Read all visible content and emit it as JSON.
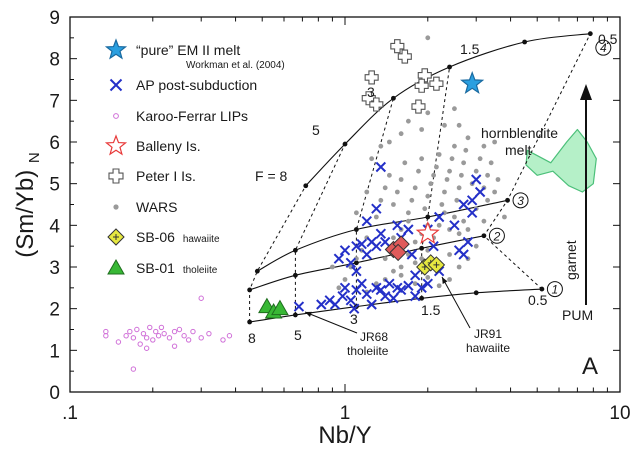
{
  "chart_data": {
    "type": "scatter",
    "panel_label": "A",
    "xlabel": "Nb/Y",
    "ylabel_main": "(Sm/Yb)",
    "ylabel_sub": "N",
    "x_scale": "log",
    "xlim": [
      0.1,
      10
    ],
    "ylim": [
      0,
      9
    ],
    "x_ticks": [
      {
        "value": 0.1,
        "label": ".1"
      },
      {
        "value": 1,
        "label": "1"
      },
      {
        "value": 10,
        "label": "10"
      }
    ],
    "y_ticks": [
      0,
      1,
      2,
      3,
      4,
      5,
      6,
      7,
      8,
      9
    ],
    "legend": {
      "position": "top-left",
      "entries": [
        {
          "key": "em2",
          "label": "“pure” EM II melt",
          "sublabel": "Workman et al. (2004)"
        },
        {
          "key": "ap",
          "label": "AP post-subduction"
        },
        {
          "key": "karoo",
          "label": "Karoo-Ferrar LIPs"
        },
        {
          "key": "balleny",
          "label": "Balleny Is."
        },
        {
          "key": "peter",
          "label": "Peter I Is."
        },
        {
          "key": "wars",
          "label": "WARS"
        },
        {
          "key": "sb06",
          "label": "SB-06",
          "label_suffix": "hawaiite"
        },
        {
          "key": "sb01",
          "label": "SB-01",
          "label_suffix": "tholeiite"
        }
      ]
    },
    "colors": {
      "em2": "#2a9fe0",
      "ap": "#2430c8",
      "karoo": "#d070d8",
      "balleny": "#e83a3a",
      "peter": "#555555",
      "wars": "#9a9a9a",
      "sb06": "#e6e840",
      "sb01": "#38b835",
      "hornblendite_fill": "#b5f0c8",
      "hornblendite_stroke": "#4cc07a",
      "curve": "#111111",
      "jr68_fill": "#e05a5a"
    },
    "melting_curves": [
      {
        "label": "1",
        "points": [
          [
            0.45,
            1.68
          ],
          [
            0.66,
            1.85
          ],
          [
            1.1,
            2.05
          ],
          [
            1.9,
            2.25
          ],
          [
            3.0,
            2.38
          ],
          [
            5.2,
            2.47
          ]
        ]
      },
      {
        "label": "2",
        "points": [
          [
            0.45,
            2.45
          ],
          [
            0.66,
            2.8
          ],
          [
            1.1,
            3.1
          ],
          [
            1.9,
            3.45
          ],
          [
            3.2,
            3.75
          ]
        ]
      },
      {
        "label": "3",
        "points": [
          [
            0.48,
            2.9
          ],
          [
            0.66,
            3.4
          ],
          [
            1.1,
            3.9
          ],
          [
            2.0,
            4.2
          ],
          [
            3.9,
            4.6
          ]
        ]
      },
      {
        "label": "4",
        "points": [
          [
            0.72,
            4.95
          ],
          [
            1.0,
            5.95
          ],
          [
            1.5,
            7.05
          ],
          [
            2.4,
            7.8
          ],
          [
            4.5,
            8.4
          ],
          [
            7.8,
            8.6
          ]
        ]
      }
    ],
    "melt_fraction_lines": [
      {
        "label": "8",
        "points": [
          [
            0.45,
            1.68
          ],
          [
            0.45,
            2.45
          ],
          [
            0.48,
            2.9
          ],
          [
            0.72,
            4.95
          ]
        ]
      },
      {
        "label": "5",
        "points": [
          [
            0.66,
            1.85
          ],
          [
            0.66,
            2.8
          ],
          [
            0.66,
            3.4
          ],
          [
            1.0,
            5.95
          ]
        ]
      },
      {
        "label": "3",
        "points": [
          [
            1.1,
            2.05
          ],
          [
            1.1,
            3.1
          ],
          [
            1.1,
            3.9
          ],
          [
            1.5,
            7.05
          ]
        ]
      },
      {
        "label": "1.5",
        "points": [
          [
            1.9,
            2.25
          ],
          [
            1.9,
            3.45
          ],
          [
            2.0,
            4.2
          ],
          [
            2.4,
            7.8
          ]
        ]
      },
      {
        "label": "0.5",
        "points": [
          [
            5.2,
            2.47
          ],
          [
            3.2,
            3.75
          ],
          [
            3.9,
            4.6
          ],
          [
            7.8,
            8.6
          ]
        ]
      }
    ],
    "curve_labels": {
      "f8": "F = 8",
      "f5": "5",
      "f3": "3",
      "f15": "1.5",
      "f05": "0.5",
      "bot8": "8",
      "bot5": "5",
      "bot3": "3",
      "bot15": "1.5",
      "bot05": "0.5"
    },
    "annotations": {
      "hornblendite": [
        "hornblendite",
        "melt"
      ],
      "garnet": "garnet",
      "pum": "PUM",
      "jr68": [
        "JR68",
        "tholeiite"
      ],
      "jr91": [
        "JR91",
        "hawaiite"
      ]
    },
    "series": {
      "em2": [
        [
          2.9,
          7.4
        ]
      ],
      "peter": [
        [
          1.25,
          7.55
        ],
        [
          1.22,
          7.05
        ],
        [
          1.3,
          6.9
        ],
        [
          1.55,
          8.3
        ],
        [
          1.65,
          8.05
        ],
        [
          1.95,
          7.6
        ],
        [
          1.9,
          7.35
        ],
        [
          2.15,
          7.4
        ],
        [
          1.85,
          6.85
        ]
      ],
      "balleny": [
        [
          2.0,
          3.8
        ]
      ],
      "sb06": [
        [
          1.95,
          3.0
        ],
        [
          2.05,
          3.1
        ],
        [
          2.15,
          3.05
        ]
      ],
      "sb01": [
        [
          0.52,
          2.05
        ],
        [
          0.55,
          1.92
        ],
        [
          0.58,
          2.0
        ]
      ],
      "jr68_diamonds": [
        [
          1.5,
          3.42
        ],
        [
          1.6,
          3.55
        ],
        [
          1.56,
          3.35
        ]
      ],
      "ap": [
        [
          0.68,
          2.05
        ],
        [
          0.82,
          2.1
        ],
        [
          0.88,
          2.2
        ],
        [
          0.92,
          2.1
        ],
        [
          0.98,
          2.3
        ],
        [
          1.0,
          2.5
        ],
        [
          1.05,
          2.2
        ],
        [
          1.08,
          2.0
        ],
        [
          1.1,
          2.45
        ],
        [
          1.15,
          2.6
        ],
        [
          1.2,
          2.35
        ],
        [
          1.25,
          2.1
        ],
        [
          1.3,
          2.5
        ],
        [
          1.35,
          2.45
        ],
        [
          1.4,
          2.3
        ],
        [
          1.45,
          2.6
        ],
        [
          1.5,
          2.25
        ],
        [
          1.55,
          2.5
        ],
        [
          1.6,
          2.45
        ],
        [
          1.7,
          2.55
        ],
        [
          1.8,
          2.3
        ],
        [
          1.9,
          2.5
        ],
        [
          0.95,
          3.2
        ],
        [
          1.0,
          3.4
        ],
        [
          1.05,
          3.1
        ],
        [
          1.1,
          3.5
        ],
        [
          1.15,
          3.55
        ],
        [
          1.2,
          3.3
        ],
        [
          1.25,
          3.6
        ],
        [
          1.3,
          3.5
        ],
        [
          1.35,
          3.8
        ],
        [
          1.4,
          3.6
        ],
        [
          1.2,
          4.1
        ],
        [
          1.3,
          4.4
        ],
        [
          1.35,
          5.4
        ],
        [
          1.55,
          4.0
        ],
        [
          1.6,
          3.7
        ],
        [
          1.7,
          3.9
        ],
        [
          1.75,
          3.3
        ],
        [
          1.8,
          2.8
        ],
        [
          2.0,
          3.9
        ],
        [
          2.1,
          3.5
        ],
        [
          2.2,
          4.2
        ],
        [
          2.5,
          4.0
        ],
        [
          2.6,
          3.4
        ],
        [
          2.7,
          3.3
        ],
        [
          2.8,
          3.6
        ],
        [
          2.9,
          4.3
        ],
        [
          2.9,
          4.6
        ],
        [
          2.7,
          4.5
        ],
        [
          3.0,
          5.1
        ],
        [
          3.1,
          4.8
        ],
        [
          2.2,
          2.9
        ],
        [
          2.0,
          2.6
        ],
        [
          1.1,
          2.9
        ]
      ],
      "wars": [
        [
          1.3,
          4.2
        ],
        [
          1.35,
          4.6
        ],
        [
          1.4,
          4.9
        ],
        [
          1.45,
          5.2
        ],
        [
          1.5,
          4.5
        ],
        [
          1.55,
          4.8
        ],
        [
          1.6,
          5.1
        ],
        [
          1.65,
          5.5
        ],
        [
          1.7,
          4.3
        ],
        [
          1.75,
          4.6
        ],
        [
          1.8,
          4.9
        ],
        [
          1.85,
          5.3
        ],
        [
          1.9,
          5.6
        ],
        [
          1.95,
          4.4
        ],
        [
          2.0,
          4.7
        ],
        [
          2.05,
          5.0
        ],
        [
          2.1,
          5.2
        ],
        [
          2.15,
          5.4
        ],
        [
          2.2,
          5.7
        ],
        [
          2.25,
          4.5
        ],
        [
          2.3,
          4.8
        ],
        [
          2.35,
          5.1
        ],
        [
          2.4,
          5.3
        ],
        [
          2.45,
          5.6
        ],
        [
          2.5,
          5.9
        ],
        [
          2.55,
          4.6
        ],
        [
          2.6,
          4.9
        ],
        [
          2.65,
          5.2
        ],
        [
          2.7,
          5.5
        ],
        [
          2.75,
          5.8
        ],
        [
          2.8,
          6.1
        ],
        [
          2.9,
          5.0
        ],
        [
          3.0,
          5.3
        ],
        [
          3.1,
          5.6
        ],
        [
          3.2,
          4.9
        ],
        [
          3.3,
          5.2
        ],
        [
          3.4,
          5.5
        ],
        [
          3.5,
          4.8
        ],
        [
          1.5,
          3.7
        ],
        [
          1.6,
          3.9
        ],
        [
          1.7,
          4.1
        ],
        [
          1.8,
          3.6
        ],
        [
          1.9,
          3.8
        ],
        [
          2.0,
          4.0
        ],
        [
          2.1,
          3.7
        ],
        [
          2.2,
          4.0
        ],
        [
          2.3,
          4.3
        ],
        [
          2.4,
          3.9
        ],
        [
          2.5,
          4.2
        ],
        [
          2.6,
          3.8
        ],
        [
          2.7,
          4.1
        ],
        [
          2.8,
          3.9
        ],
        [
          3.0,
          4.4
        ],
        [
          3.2,
          4.1
        ],
        [
          1.4,
          3.2
        ],
        [
          1.5,
          2.9
        ],
        [
          1.6,
          3.0
        ],
        [
          1.7,
          3.3
        ],
        [
          1.8,
          3.1
        ],
        [
          1.9,
          3.2
        ],
        [
          2.0,
          3.4
        ],
        [
          2.2,
          3.1
        ],
        [
          2.4,
          3.3
        ],
        [
          2.6,
          3.0
        ],
        [
          2.8,
          3.2
        ],
        [
          3.0,
          3.5
        ],
        [
          1.2,
          2.4
        ],
        [
          1.3,
          2.6
        ],
        [
          1.4,
          2.7
        ],
        [
          1.6,
          2.8
        ],
        [
          1.8,
          2.6
        ],
        [
          2.0,
          2.75
        ],
        [
          2.2,
          2.55
        ],
        [
          2.4,
          2.7
        ],
        [
          0.95,
          2.5
        ],
        [
          1.0,
          2.7
        ],
        [
          1.05,
          3.0
        ],
        [
          1.1,
          3.2
        ],
        [
          0.9,
          3.0
        ],
        [
          1.15,
          3.4
        ],
        [
          1.2,
          3.7
        ],
        [
          1.45,
          6.0
        ],
        [
          1.6,
          6.2
        ],
        [
          1.7,
          6.5
        ],
        [
          1.9,
          6.3
        ],
        [
          2.0,
          6.7
        ],
        [
          2.3,
          6.4
        ],
        [
          2.5,
          6.8
        ],
        [
          1.25,
          5.6
        ],
        [
          1.35,
          5.9
        ],
        [
          2.6,
          6.4
        ],
        [
          3.2,
          5.9
        ],
        [
          3.5,
          6.0
        ],
        [
          2.0,
          8.5
        ],
        [
          1.2,
          4.8
        ],
        [
          1.1,
          4.3
        ],
        [
          3.6,
          5.1
        ],
        [
          3.8,
          4.2
        ],
        [
          3.3,
          4.6
        ]
      ],
      "karoo": [
        [
          0.135,
          1.35
        ],
        [
          0.135,
          1.45
        ],
        [
          0.15,
          1.2
        ],
        [
          0.16,
          1.35
        ],
        [
          0.165,
          1.45
        ],
        [
          0.17,
          1.3
        ],
        [
          0.175,
          1.5
        ],
        [
          0.18,
          1.15
        ],
        [
          0.185,
          1.4
        ],
        [
          0.19,
          1.3
        ],
        [
          0.195,
          1.55
        ],
        [
          0.2,
          1.25
        ],
        [
          0.205,
          1.45
        ],
        [
          0.21,
          1.35
        ],
        [
          0.215,
          1.55
        ],
        [
          0.22,
          1.4
        ],
        [
          0.23,
          1.3
        ],
        [
          0.24,
          1.45
        ],
        [
          0.25,
          1.5
        ],
        [
          0.26,
          1.35
        ],
        [
          0.27,
          1.25
        ],
        [
          0.28,
          1.45
        ],
        [
          0.3,
          1.3
        ],
        [
          0.32,
          1.4
        ],
        [
          0.36,
          1.25
        ],
        [
          0.38,
          1.35
        ],
        [
          0.17,
          0.55
        ],
        [
          0.3,
          2.25
        ],
        [
          0.19,
          1.05
        ],
        [
          0.24,
          1.1
        ]
      ]
    }
  }
}
